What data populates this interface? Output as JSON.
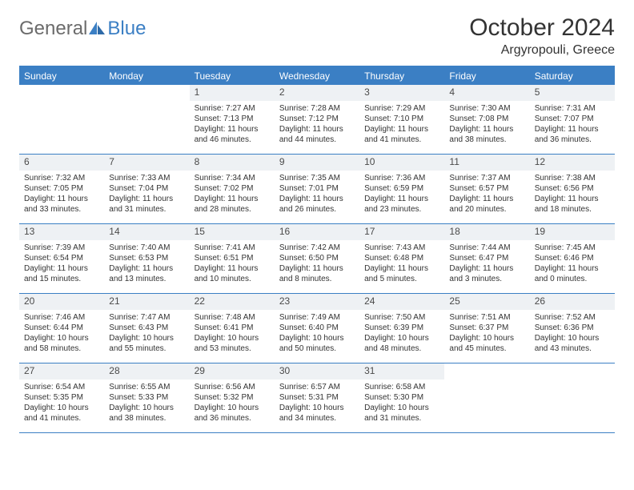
{
  "logo": {
    "text_general": "General",
    "text_blue": "Blue"
  },
  "title": "October 2024",
  "location": "Argyropouli, Greece",
  "weekdays": [
    "Sunday",
    "Monday",
    "Tuesday",
    "Wednesday",
    "Thursday",
    "Friday",
    "Saturday"
  ],
  "colors": {
    "accent": "#3b7fc4",
    "daynum_bg": "#eef1f4",
    "text": "#333333",
    "logo_gray": "#6b6b6b"
  },
  "weeks": [
    [
      {
        "n": "",
        "sr": "",
        "ss": "",
        "dl1": "",
        "dl2": "",
        "empty": true
      },
      {
        "n": "",
        "sr": "",
        "ss": "",
        "dl1": "",
        "dl2": "",
        "empty": true
      },
      {
        "n": "1",
        "sr": "Sunrise: 7:27 AM",
        "ss": "Sunset: 7:13 PM",
        "dl1": "Daylight: 11 hours",
        "dl2": "and 46 minutes."
      },
      {
        "n": "2",
        "sr": "Sunrise: 7:28 AM",
        "ss": "Sunset: 7:12 PM",
        "dl1": "Daylight: 11 hours",
        "dl2": "and 44 minutes."
      },
      {
        "n": "3",
        "sr": "Sunrise: 7:29 AM",
        "ss": "Sunset: 7:10 PM",
        "dl1": "Daylight: 11 hours",
        "dl2": "and 41 minutes."
      },
      {
        "n": "4",
        "sr": "Sunrise: 7:30 AM",
        "ss": "Sunset: 7:08 PM",
        "dl1": "Daylight: 11 hours",
        "dl2": "and 38 minutes."
      },
      {
        "n": "5",
        "sr": "Sunrise: 7:31 AM",
        "ss": "Sunset: 7:07 PM",
        "dl1": "Daylight: 11 hours",
        "dl2": "and 36 minutes."
      }
    ],
    [
      {
        "n": "6",
        "sr": "Sunrise: 7:32 AM",
        "ss": "Sunset: 7:05 PM",
        "dl1": "Daylight: 11 hours",
        "dl2": "and 33 minutes."
      },
      {
        "n": "7",
        "sr": "Sunrise: 7:33 AM",
        "ss": "Sunset: 7:04 PM",
        "dl1": "Daylight: 11 hours",
        "dl2": "and 31 minutes."
      },
      {
        "n": "8",
        "sr": "Sunrise: 7:34 AM",
        "ss": "Sunset: 7:02 PM",
        "dl1": "Daylight: 11 hours",
        "dl2": "and 28 minutes."
      },
      {
        "n": "9",
        "sr": "Sunrise: 7:35 AM",
        "ss": "Sunset: 7:01 PM",
        "dl1": "Daylight: 11 hours",
        "dl2": "and 26 minutes."
      },
      {
        "n": "10",
        "sr": "Sunrise: 7:36 AM",
        "ss": "Sunset: 6:59 PM",
        "dl1": "Daylight: 11 hours",
        "dl2": "and 23 minutes."
      },
      {
        "n": "11",
        "sr": "Sunrise: 7:37 AM",
        "ss": "Sunset: 6:57 PM",
        "dl1": "Daylight: 11 hours",
        "dl2": "and 20 minutes."
      },
      {
        "n": "12",
        "sr": "Sunrise: 7:38 AM",
        "ss": "Sunset: 6:56 PM",
        "dl1": "Daylight: 11 hours",
        "dl2": "and 18 minutes."
      }
    ],
    [
      {
        "n": "13",
        "sr": "Sunrise: 7:39 AM",
        "ss": "Sunset: 6:54 PM",
        "dl1": "Daylight: 11 hours",
        "dl2": "and 15 minutes."
      },
      {
        "n": "14",
        "sr": "Sunrise: 7:40 AM",
        "ss": "Sunset: 6:53 PM",
        "dl1": "Daylight: 11 hours",
        "dl2": "and 13 minutes."
      },
      {
        "n": "15",
        "sr": "Sunrise: 7:41 AM",
        "ss": "Sunset: 6:51 PM",
        "dl1": "Daylight: 11 hours",
        "dl2": "and 10 minutes."
      },
      {
        "n": "16",
        "sr": "Sunrise: 7:42 AM",
        "ss": "Sunset: 6:50 PM",
        "dl1": "Daylight: 11 hours",
        "dl2": "and 8 minutes."
      },
      {
        "n": "17",
        "sr": "Sunrise: 7:43 AM",
        "ss": "Sunset: 6:48 PM",
        "dl1": "Daylight: 11 hours",
        "dl2": "and 5 minutes."
      },
      {
        "n": "18",
        "sr": "Sunrise: 7:44 AM",
        "ss": "Sunset: 6:47 PM",
        "dl1": "Daylight: 11 hours",
        "dl2": "and 3 minutes."
      },
      {
        "n": "19",
        "sr": "Sunrise: 7:45 AM",
        "ss": "Sunset: 6:46 PM",
        "dl1": "Daylight: 11 hours",
        "dl2": "and 0 minutes."
      }
    ],
    [
      {
        "n": "20",
        "sr": "Sunrise: 7:46 AM",
        "ss": "Sunset: 6:44 PM",
        "dl1": "Daylight: 10 hours",
        "dl2": "and 58 minutes."
      },
      {
        "n": "21",
        "sr": "Sunrise: 7:47 AM",
        "ss": "Sunset: 6:43 PM",
        "dl1": "Daylight: 10 hours",
        "dl2": "and 55 minutes."
      },
      {
        "n": "22",
        "sr": "Sunrise: 7:48 AM",
        "ss": "Sunset: 6:41 PM",
        "dl1": "Daylight: 10 hours",
        "dl2": "and 53 minutes."
      },
      {
        "n": "23",
        "sr": "Sunrise: 7:49 AM",
        "ss": "Sunset: 6:40 PM",
        "dl1": "Daylight: 10 hours",
        "dl2": "and 50 minutes."
      },
      {
        "n": "24",
        "sr": "Sunrise: 7:50 AM",
        "ss": "Sunset: 6:39 PM",
        "dl1": "Daylight: 10 hours",
        "dl2": "and 48 minutes."
      },
      {
        "n": "25",
        "sr": "Sunrise: 7:51 AM",
        "ss": "Sunset: 6:37 PM",
        "dl1": "Daylight: 10 hours",
        "dl2": "and 45 minutes."
      },
      {
        "n": "26",
        "sr": "Sunrise: 7:52 AM",
        "ss": "Sunset: 6:36 PM",
        "dl1": "Daylight: 10 hours",
        "dl2": "and 43 minutes."
      }
    ],
    [
      {
        "n": "27",
        "sr": "Sunrise: 6:54 AM",
        "ss": "Sunset: 5:35 PM",
        "dl1": "Daylight: 10 hours",
        "dl2": "and 41 minutes."
      },
      {
        "n": "28",
        "sr": "Sunrise: 6:55 AM",
        "ss": "Sunset: 5:33 PM",
        "dl1": "Daylight: 10 hours",
        "dl2": "and 38 minutes."
      },
      {
        "n": "29",
        "sr": "Sunrise: 6:56 AM",
        "ss": "Sunset: 5:32 PM",
        "dl1": "Daylight: 10 hours",
        "dl2": "and 36 minutes."
      },
      {
        "n": "30",
        "sr": "Sunrise: 6:57 AM",
        "ss": "Sunset: 5:31 PM",
        "dl1": "Daylight: 10 hours",
        "dl2": "and 34 minutes."
      },
      {
        "n": "31",
        "sr": "Sunrise: 6:58 AM",
        "ss": "Sunset: 5:30 PM",
        "dl1": "Daylight: 10 hours",
        "dl2": "and 31 minutes."
      },
      {
        "n": "",
        "sr": "",
        "ss": "",
        "dl1": "",
        "dl2": "",
        "empty": true
      },
      {
        "n": "",
        "sr": "",
        "ss": "",
        "dl1": "",
        "dl2": "",
        "empty": true
      }
    ]
  ]
}
